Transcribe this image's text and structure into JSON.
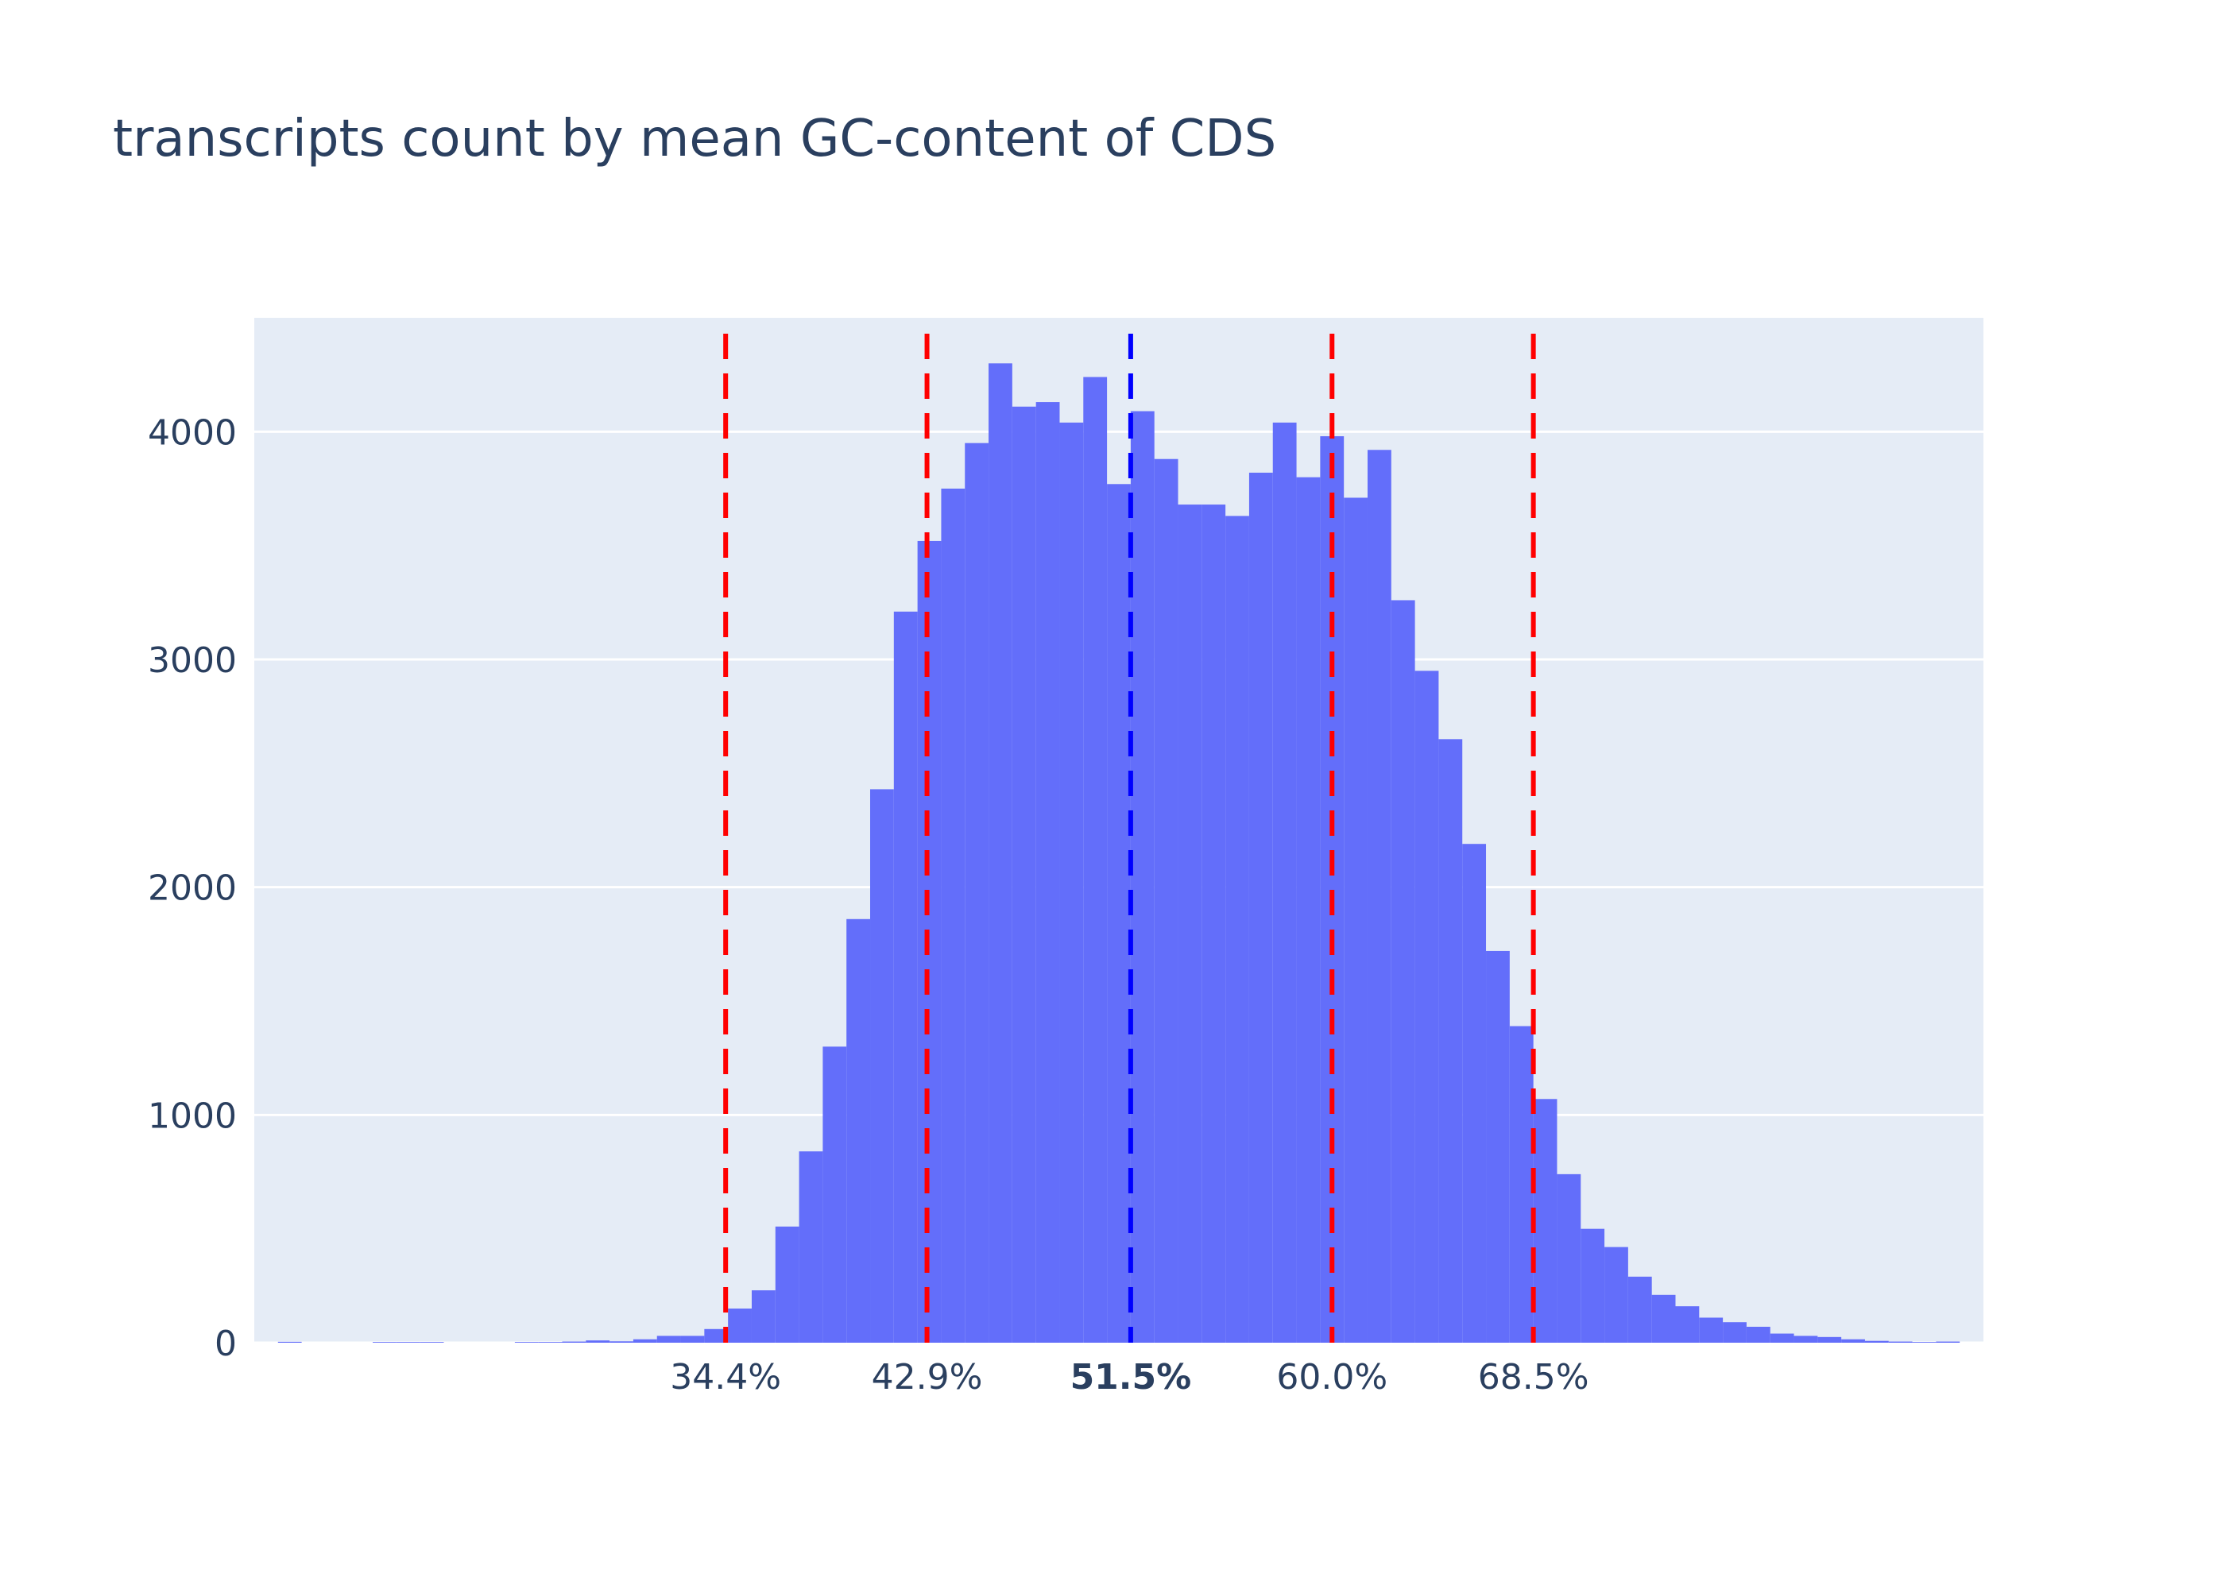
{
  "chart_data": {
    "type": "bar",
    "title": "transcripts count by mean GC-content of CDS",
    "xlabel": "",
    "ylabel": "",
    "xlim": [
      14.5,
      87.5
    ],
    "ylim": [
      0,
      4500
    ],
    "y_ticks": [
      0,
      1000,
      2000,
      3000,
      4000
    ],
    "x_ticks": [
      {
        "value": 34.4,
        "label": "34.4%",
        "bold": false
      },
      {
        "value": 42.9,
        "label": "42.9%",
        "bold": false
      },
      {
        "value": 51.5,
        "label": "51.5%",
        "bold": true
      },
      {
        "value": 60.0,
        "label": "60.0%",
        "bold": false
      },
      {
        "value": 68.5,
        "label": "68.5%",
        "bold": false
      }
    ],
    "bin_start": 14.5,
    "bin_width": 1,
    "values": [
      0,
      4,
      0,
      0,
      0,
      3,
      3,
      3,
      0,
      0,
      0,
      3,
      3,
      5,
      10,
      6,
      15,
      30,
      30,
      60,
      150,
      230,
      510,
      840,
      1300,
      1860,
      2430,
      3210,
      3520,
      3750,
      3950,
      4300,
      4110,
      4130,
      4040,
      4240,
      3770,
      4090,
      3880,
      3680,
      3680,
      3630,
      3820,
      4040,
      3800,
      3980,
      3710,
      3920,
      3260,
      2950,
      2650,
      2190,
      1720,
      1390,
      1070,
      740,
      500,
      420,
      290,
      210,
      160,
      110,
      90,
      70,
      40,
      30,
      25,
      15,
      8,
      5,
      3,
      5,
      0
    ],
    "vertical_lines": [
      {
        "x": 34.4,
        "color": "#ff0000"
      },
      {
        "x": 42.9,
        "color": "#ff0000"
      },
      {
        "x": 51.5,
        "color": "#0000ff"
      },
      {
        "x": 60.0,
        "color": "#ff0000"
      },
      {
        "x": 68.5,
        "color": "#ff0000"
      }
    ],
    "bar_color": "#636efa",
    "plot_background": "#e5ecf6",
    "grid": true
  }
}
